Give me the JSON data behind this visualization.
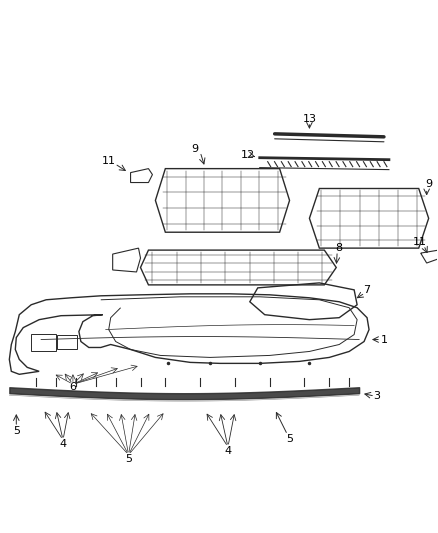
{
  "bg_color": "#ffffff",
  "line_color": "#2a2a2a",
  "figsize": [
    4.38,
    5.33
  ],
  "dpi": 100,
  "label_fs": 8.0,
  "label_color": "#000000"
}
